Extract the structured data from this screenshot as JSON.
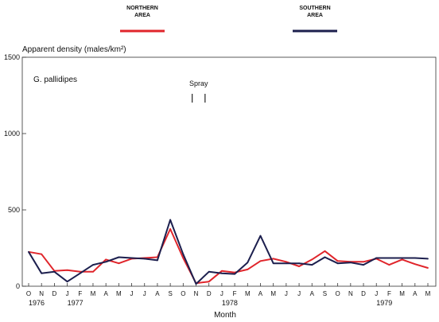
{
  "chart_data": {
    "type": "line",
    "subtitle": "G. pallidipes",
    "ylabel": "Apparent density (males/km²)",
    "xlabel": "Month",
    "ylim": [
      0,
      1500
    ],
    "yticks": [
      0,
      500,
      1000,
      1500
    ],
    "grid": false,
    "legend": "top",
    "months": [
      "O",
      "N",
      "D",
      "J",
      "F",
      "M",
      "A",
      "M",
      "J",
      "J",
      "A",
      "S",
      "O",
      "N",
      "D",
      "J",
      "F",
      "M",
      "A",
      "M",
      "J",
      "J",
      "A",
      "S",
      "O",
      "N",
      "D",
      "J",
      "F",
      "M",
      "A",
      "M"
    ],
    "years": [
      {
        "label": "1976",
        "index": 0
      },
      {
        "label": "1977",
        "index": 3
      },
      {
        "label": "1978",
        "index": 15
      },
      {
        "label": "1979",
        "index": 27
      }
    ],
    "annotation": {
      "label": "Spray",
      "start_index": 13,
      "end_index": 14
    },
    "series": [
      {
        "name": "NORTHERN AREA",
        "color": "#e0252b",
        "values": [
          225,
          210,
          100,
          105,
          95,
          95,
          175,
          150,
          180,
          185,
          190,
          375,
          185,
          20,
          30,
          100,
          90,
          110,
          165,
          180,
          160,
          130,
          175,
          230,
          165,
          160,
          160,
          180,
          140,
          175,
          145,
          120
        ]
      },
      {
        "name": "SOUTHERN AREA",
        "color": "#1c1f4e",
        "values": [
          225,
          85,
          95,
          30,
          85,
          140,
          160,
          190,
          185,
          180,
          170,
          435,
          210,
          15,
          95,
          85,
          80,
          155,
          330,
          150,
          150,
          150,
          140,
          190,
          150,
          155,
          140,
          185,
          185,
          185,
          185,
          180
        ]
      }
    ]
  }
}
